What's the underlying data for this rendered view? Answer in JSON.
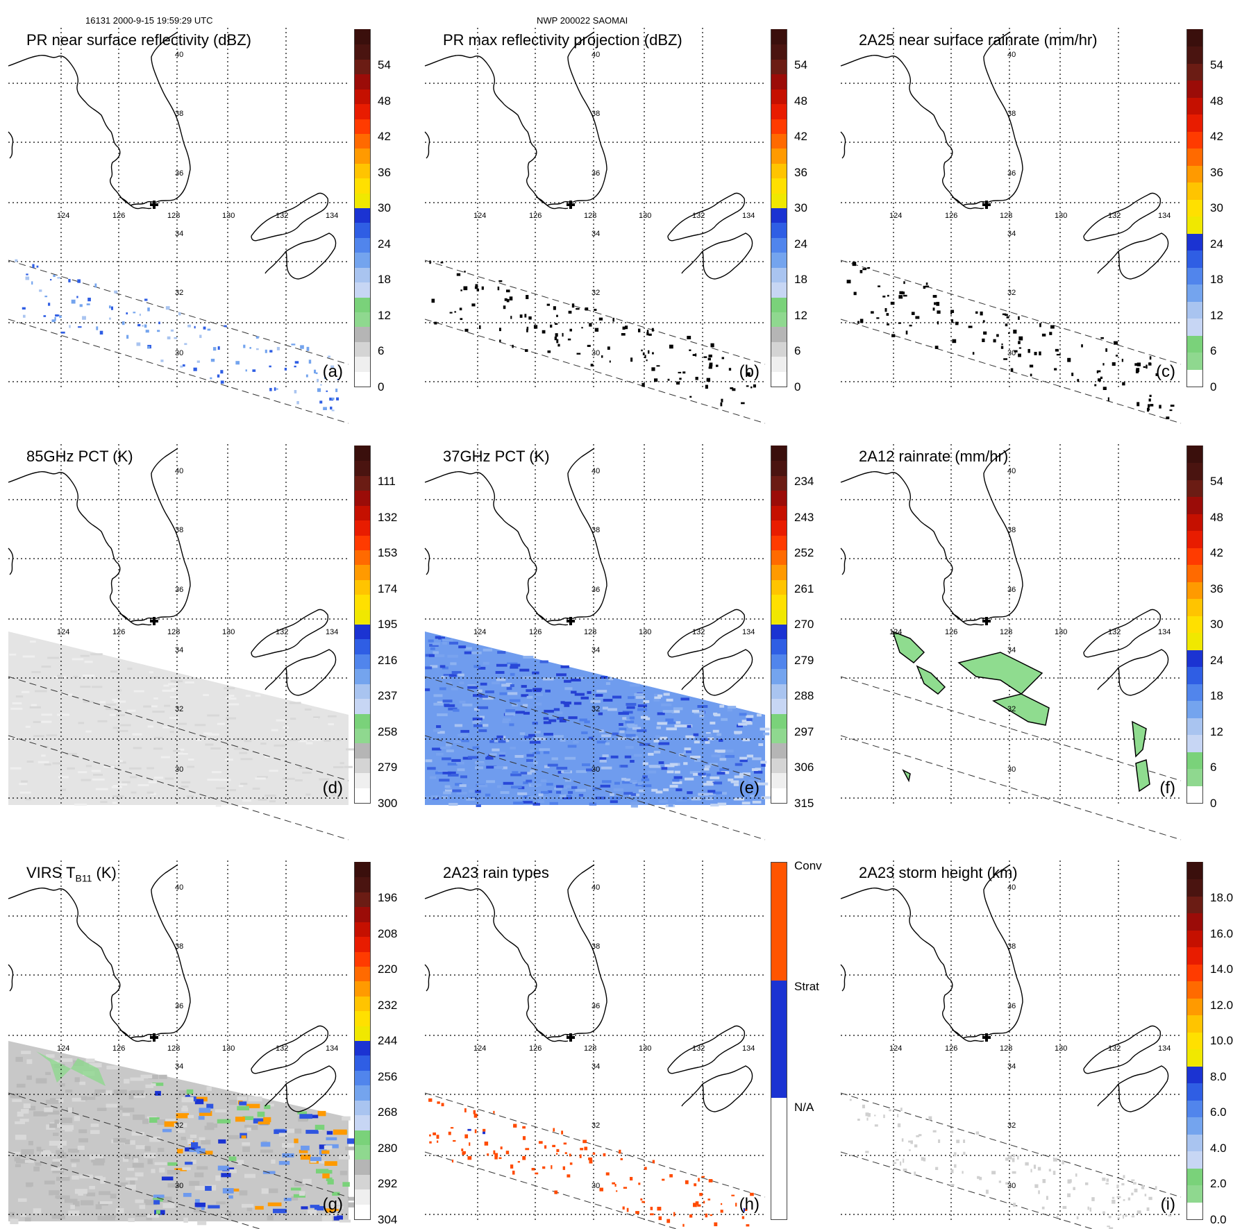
{
  "header": {
    "orbit_info": "16131 2000-9-15 19:59:29 UTC",
    "storm_info": "NWP 200022 SAOMAI"
  },
  "colors": {
    "coast": "#000000",
    "grid": "#000000",
    "green": "#7fdc7f",
    "light_blue": "#b8cff5",
    "blue": "#1e3cdc",
    "yellow": "#ffee00",
    "orange": "#ff8c00",
    "red": "#ee1100",
    "dark_red": "#5a1a14"
  },
  "map_labels": {
    "lat": [
      "40",
      "38",
      "36",
      "34",
      "32",
      "30"
    ],
    "lon": [
      "124",
      "126",
      "128",
      "130",
      "132",
      "134"
    ]
  },
  "panels": [
    {
      "title": "PR near surface reflectivity (dBZ)",
      "letter": "(a)",
      "ticks": [
        "54",
        "48",
        "42",
        "36",
        "30",
        "24",
        "18",
        "12",
        "6",
        "0"
      ]
    },
    {
      "title": "PR max reflectivity projection (dBZ)",
      "letter": "(b)",
      "ticks": [
        "54",
        "48",
        "42",
        "36",
        "30",
        "24",
        "18",
        "12",
        "6",
        "0"
      ]
    },
    {
      "title": "2A25 near surface rainrate (mm/hr)",
      "letter": "(c)",
      "ticks": [
        "54",
        "48",
        "42",
        "36",
        "30",
        "24",
        "18",
        "12",
        "6",
        "0"
      ]
    },
    {
      "title": "85GHz PCT (K)",
      "letter": "(d)",
      "ticks": [
        "111",
        "132",
        "153",
        "174",
        "195",
        "216",
        "237",
        "258",
        "279",
        "300"
      ]
    },
    {
      "title": "37GHz PCT (K)",
      "letter": "(e)",
      "ticks": [
        "234",
        "243",
        "252",
        "261",
        "270",
        "279",
        "288",
        "297",
        "306",
        "315"
      ]
    },
    {
      "title": "2A12 rainrate (mm/hr)",
      "letter": "(f)",
      "ticks": [
        "54",
        "48",
        "42",
        "36",
        "30",
        "24",
        "18",
        "12",
        "6",
        "0"
      ]
    },
    {
      "title_main": "VIRS T",
      "title_sub": "B11",
      "title_tail": " (K)",
      "letter": "(g)",
      "ticks": [
        "196",
        "208",
        "220",
        "232",
        "244",
        "256",
        "268",
        "280",
        "292",
        "304"
      ]
    },
    {
      "title": "2A23 rain types",
      "letter": "(h)",
      "ticks": [
        "Conv",
        "Strat",
        "N/A"
      ]
    },
    {
      "title": "2A23 storm height (km)",
      "letter": "(i)",
      "ticks": [
        "18.0",
        "16.0",
        "14.0",
        "12.0",
        "10.0",
        "8.0",
        "6.0",
        "4.0",
        "2.0",
        "0.0"
      ]
    }
  ]
}
